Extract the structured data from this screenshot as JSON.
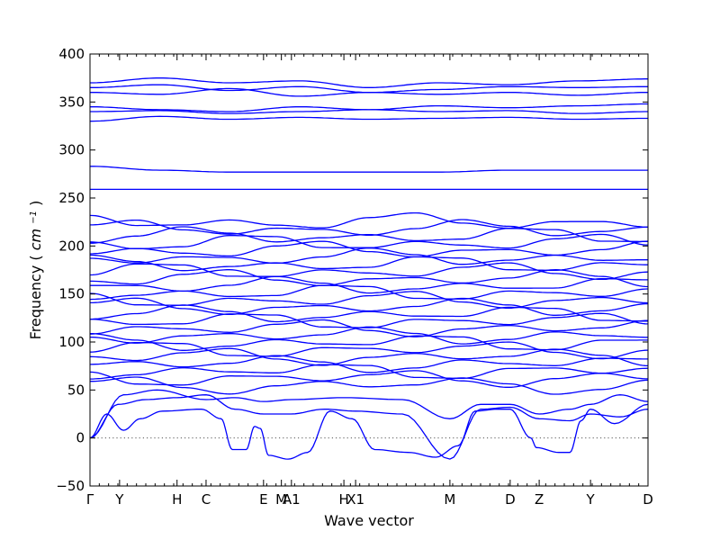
{
  "chart_data": {
    "type": "line",
    "xlabel": "Wave vector",
    "ylabel": "Frequency",
    "ylabel_unit": "cm",
    "ylabel_unit_exp": "−1",
    "ylim": [
      -50,
      400
    ],
    "yticks": [
      -50,
      0,
      50,
      100,
      150,
      200,
      250,
      300,
      350,
      400
    ],
    "xlim": [
      0,
      1
    ],
    "xtick_labels": [
      {
        "label": "Γ",
        "x": 0.0
      },
      {
        "label": "Y",
        "x": 0.053
      },
      {
        "label": "H",
        "x": 0.156
      },
      {
        "label": "C",
        "x": 0.208
      },
      {
        "label": "E",
        "x": 0.311
      },
      {
        "label": "M",
        "x": 0.343
      },
      {
        "label": "A1",
        "x": 0.361
      },
      {
        "label": "H",
        "x": 0.455
      },
      {
        "label": "X1",
        "x": 0.476
      },
      {
        "label": "M",
        "x": 0.645
      },
      {
        "label": "D",
        "x": 0.753
      },
      {
        "label": "Z",
        "x": 0.805
      },
      {
        "label": "Y",
        "x": 0.897
      },
      {
        "label": "D",
        "x": 1.0
      }
    ],
    "zero_line": true,
    "line_color": "#0000ff",
    "high_bands": [
      [
        370,
        375,
        370,
        372,
        365,
        370,
        368,
        372,
        374
      ],
      [
        365,
        368,
        362,
        366,
        360,
        363,
        366,
        365,
        366
      ],
      [
        360,
        358,
        364,
        356,
        360,
        358,
        360,
        357,
        360
      ],
      [
        345,
        342,
        340,
        345,
        342,
        346,
        344,
        346,
        348
      ],
      [
        340,
        341,
        338,
        340,
        342,
        340,
        341,
        338,
        340
      ],
      [
        330,
        335,
        332,
        334,
        332,
        333,
        334,
        332,
        333
      ],
      [
        283,
        279,
        277,
        277,
        277,
        277,
        279,
        279,
        279
      ],
      [
        259,
        259,
        259,
        259,
        259,
        259,
        259,
        259,
        259
      ]
    ],
    "mid_band_count": 24,
    "mid_band_range": [
      55,
      225
    ],
    "acoustic_branches": [
      {
        "name": "",
        "points": [
          [
            0.0,
            0
          ],
          [
            0.03,
            25
          ],
          [
            0.06,
            8
          ],
          [
            0.09,
            20
          ],
          [
            0.13,
            28
          ],
          [
            0.2,
            30
          ],
          [
            0.235,
            20
          ],
          [
            0.255,
            -12
          ],
          [
            0.28,
            -12
          ],
          [
            0.295,
            12
          ],
          [
            0.305,
            10
          ],
          [
            0.32,
            -18
          ],
          [
            0.355,
            -22
          ],
          [
            0.39,
            -15
          ],
          [
            0.43,
            28
          ],
          [
            0.47,
            20
          ],
          [
            0.51,
            -12
          ],
          [
            0.57,
            -15
          ],
          [
            0.62,
            -20
          ],
          [
            0.66,
            -8
          ],
          [
            0.69,
            28
          ],
          [
            0.73,
            30
          ],
          [
            0.753,
            30
          ],
          [
            0.79,
            0
          ],
          [
            0.8,
            -10
          ],
          [
            0.84,
            -15
          ],
          [
            0.86,
            -15
          ],
          [
            0.88,
            18
          ],
          [
            0.897,
            30
          ],
          [
            0.94,
            15
          ],
          [
            1.0,
            35
          ]
        ]
      },
      {
        "name": "",
        "points": [
          [
            0.0,
            0
          ],
          [
            0.05,
            35
          ],
          [
            0.1,
            40
          ],
          [
            0.156,
            42
          ],
          [
            0.208,
            45
          ],
          [
            0.26,
            30
          ],
          [
            0.311,
            25
          ],
          [
            0.36,
            25
          ],
          [
            0.42,
            30
          ],
          [
            0.476,
            28
          ],
          [
            0.56,
            25
          ],
          [
            0.645,
            -22
          ],
          [
            0.7,
            30
          ],
          [
            0.753,
            32
          ],
          [
            0.805,
            20
          ],
          [
            0.86,
            18
          ],
          [
            0.897,
            25
          ],
          [
            0.95,
            22
          ],
          [
            1.0,
            30
          ]
        ]
      },
      {
        "name": "",
        "points": [
          [
            0.0,
            0
          ],
          [
            0.06,
            45
          ],
          [
            0.12,
            50
          ],
          [
            0.208,
            40
          ],
          [
            0.26,
            42
          ],
          [
            0.311,
            38
          ],
          [
            0.361,
            40
          ],
          [
            0.455,
            42
          ],
          [
            0.56,
            40
          ],
          [
            0.645,
            20
          ],
          [
            0.7,
            35
          ],
          [
            0.753,
            35
          ],
          [
            0.805,
            25
          ],
          [
            0.86,
            30
          ],
          [
            0.897,
            35
          ],
          [
            0.95,
            45
          ],
          [
            1.0,
            38
          ]
        ]
      }
    ]
  }
}
